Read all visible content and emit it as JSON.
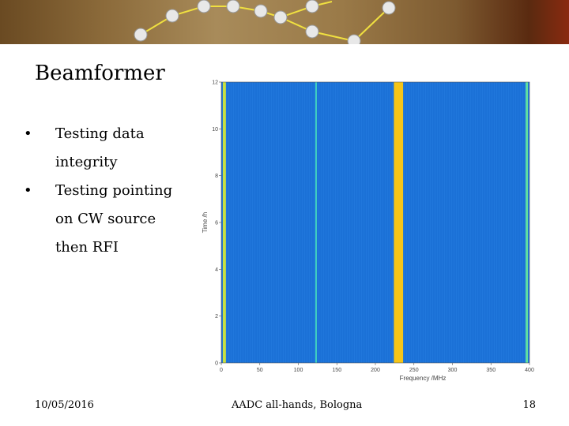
{
  "slide": {
    "title": "Beamformer",
    "bullets": [
      {
        "text": "Testing data integrity"
      },
      {
        "text": "Testing pointing on CW source then RFI"
      }
    ]
  },
  "footer": {
    "date": "10/05/2016",
    "center": "AADC all-hands, Bologna",
    "page": "18"
  },
  "chart_data": {
    "type": "heatmap",
    "xlabel": "Frequency /MHz",
    "ylabel": "Time /h",
    "xlim": [
      0,
      400
    ],
    "ylim": [
      0,
      12
    ],
    "xticks": [
      0,
      50,
      100,
      150,
      200,
      250,
      300,
      350,
      400
    ],
    "yticks": [
      0,
      2,
      4,
      6,
      8,
      10,
      12
    ],
    "background_color": "#1a6fd6",
    "bright_bands": [
      {
        "x": 2,
        "width": 4,
        "color": "#c8e040"
      },
      {
        "x": 122,
        "width": 2,
        "color": "#40d0c0"
      },
      {
        "x": 224,
        "width": 12,
        "color": "#f5c518"
      },
      {
        "x": 395,
        "width": 3,
        "color": "#60e0a0"
      }
    ]
  }
}
